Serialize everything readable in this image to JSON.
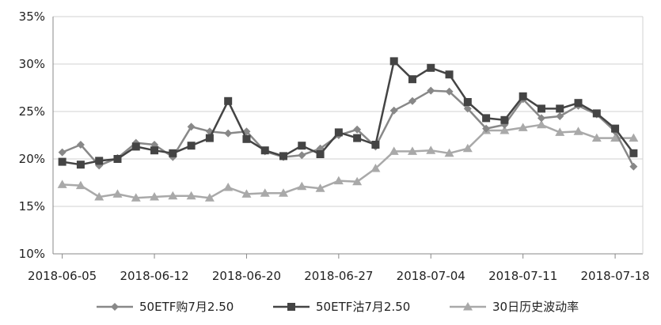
{
  "chart_data": {
    "type": "line",
    "ylim": [
      0.1,
      0.35
    ],
    "y_ticks": [
      {
        "value": 0.1,
        "label": "10%"
      },
      {
        "value": 0.15,
        "label": "15%"
      },
      {
        "value": 0.2,
        "label": "20%"
      },
      {
        "value": 0.25,
        "label": "25%"
      },
      {
        "value": 0.3,
        "label": "30%"
      },
      {
        "value": 0.35,
        "label": "35%"
      }
    ],
    "x_ticks": [
      {
        "index": 0,
        "label": "2018-06-05"
      },
      {
        "index": 5,
        "label": "2018-06-12"
      },
      {
        "index": 10,
        "label": "2018-06-20"
      },
      {
        "index": 15,
        "label": "2018-06-27"
      },
      {
        "index": 20,
        "label": "2018-07-04"
      },
      {
        "index": 25,
        "label": "2018-07-11"
      },
      {
        "index": 30,
        "label": "2018-07-18"
      }
    ],
    "grid": "horizontal",
    "legend_position": "bottom",
    "series": [
      {
        "name": "50ETF购7月2.50",
        "marker": "diamond",
        "color": "#888888",
        "values": [
          0.207,
          0.215,
          0.193,
          0.201,
          0.217,
          0.215,
          0.202,
          0.234,
          0.229,
          0.227,
          0.229,
          0.208,
          0.202,
          0.204,
          0.211,
          0.225,
          0.231,
          0.213,
          0.251,
          0.261,
          0.272,
          0.271,
          0.253,
          0.232,
          0.236,
          0.263,
          0.243,
          0.245,
          0.256,
          0.247,
          0.229,
          0.192
        ]
      },
      {
        "name": "50ETF沽7月2.50",
        "marker": "square",
        "color": "#444444",
        "values": [
          0.197,
          0.194,
          0.198,
          0.2,
          0.213,
          0.209,
          0.206,
          0.214,
          0.222,
          0.261,
          0.221,
          0.209,
          0.203,
          0.214,
          0.205,
          0.228,
          0.222,
          0.215,
          0.303,
          0.284,
          0.296,
          0.289,
          0.26,
          0.243,
          0.241,
          0.266,
          0.253,
          0.253,
          0.259,
          0.248,
          0.232,
          0.206
        ]
      },
      {
        "name": "30日历史波动率",
        "marker": "triangle",
        "color": "#a9a9a9",
        "values": [
          0.173,
          0.172,
          0.16,
          0.163,
          0.159,
          0.16,
          0.161,
          0.161,
          0.159,
          0.17,
          0.163,
          0.164,
          0.164,
          0.171,
          0.169,
          0.177,
          0.176,
          0.19,
          0.208,
          0.208,
          0.209,
          0.206,
          0.211,
          0.23,
          0.23,
          0.233,
          0.236,
          0.228,
          0.229,
          0.222,
          0.222,
          0.222
        ]
      }
    ]
  }
}
